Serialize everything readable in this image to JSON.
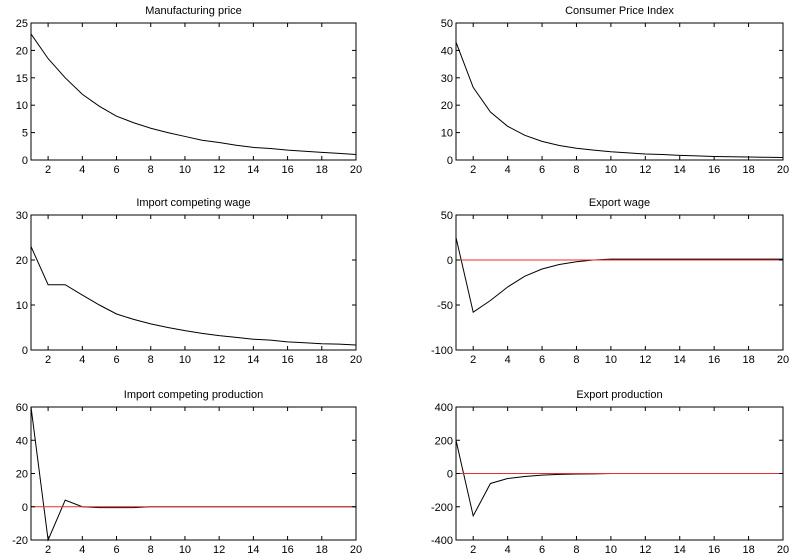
{
  "chart_data": [
    {
      "type": "line",
      "title": "Manufacturing price",
      "x": [
        1,
        2,
        3,
        4,
        5,
        6,
        7,
        8,
        9,
        10,
        11,
        12,
        13,
        14,
        15,
        16,
        17,
        18,
        19,
        20
      ],
      "series": [
        {
          "values": [
            23,
            18.5,
            15,
            12,
            9.8,
            8,
            6.8,
            5.8,
            5,
            4.3,
            3.6,
            3.2,
            2.7,
            2.3,
            2.1,
            1.8,
            1.6,
            1.4,
            1.2,
            1
          ]
        },
        {
          "values": [
            0,
            0,
            0,
            0,
            0,
            0,
            0,
            0,
            0,
            0,
            0,
            0,
            0,
            0,
            0,
            0,
            0,
            0,
            0,
            0
          ]
        }
      ],
      "xlim": [
        1,
        20
      ],
      "ylim": [
        0,
        25
      ],
      "xticks": [
        2,
        4,
        6,
        8,
        10,
        12,
        14,
        16,
        18,
        20
      ],
      "yticks": [
        0,
        5,
        10,
        15,
        20,
        25
      ],
      "xlabel": "",
      "ylabel": "",
      "grid": false
    },
    {
      "type": "line",
      "title": "Consumer Price Index",
      "x": [
        1,
        2,
        3,
        4,
        5,
        6,
        7,
        8,
        9,
        10,
        11,
        12,
        13,
        14,
        15,
        16,
        17,
        18,
        19,
        20
      ],
      "series": [
        {
          "values": [
            43,
            26.5,
            17.5,
            12.3,
            9,
            6.8,
            5.3,
            4.3,
            3.6,
            3,
            2.6,
            2.2,
            2,
            1.7,
            1.5,
            1.3,
            1.2,
            1.1,
            1,
            0.9
          ]
        },
        {
          "values": [
            0,
            0,
            0,
            0,
            0,
            0,
            0,
            0,
            0,
            0,
            0,
            0,
            0,
            0,
            0,
            0,
            0,
            0,
            0,
            0
          ]
        }
      ],
      "xlim": [
        1,
        20
      ],
      "ylim": [
        0,
        50
      ],
      "xticks": [
        2,
        4,
        6,
        8,
        10,
        12,
        14,
        16,
        18,
        20
      ],
      "yticks": [
        0,
        10,
        20,
        30,
        40,
        50
      ],
      "xlabel": "",
      "ylabel": "",
      "grid": false
    },
    {
      "type": "line",
      "title": "Import competing wage",
      "x": [
        1,
        2,
        3,
        4,
        5,
        6,
        7,
        8,
        9,
        10,
        11,
        12,
        13,
        14,
        15,
        16,
        17,
        18,
        19,
        20
      ],
      "series": [
        {
          "values": [
            23,
            14.5,
            14.5,
            12.2,
            10,
            8,
            6.8,
            5.8,
            5,
            4.3,
            3.7,
            3.2,
            2.8,
            2.4,
            2.2,
            1.8,
            1.6,
            1.4,
            1.3,
            1.1
          ]
        },
        {
          "values": [
            0,
            0,
            0,
            0,
            0,
            0,
            0,
            0,
            0,
            0,
            0,
            0,
            0,
            0,
            0,
            0,
            0,
            0,
            0,
            0
          ]
        }
      ],
      "xlim": [
        1,
        20
      ],
      "ylim": [
        0,
        30
      ],
      "xticks": [
        2,
        4,
        6,
        8,
        10,
        12,
        14,
        16,
        18,
        20
      ],
      "yticks": [
        0,
        10,
        20,
        30
      ],
      "xlabel": "",
      "ylabel": "",
      "grid": false
    },
    {
      "type": "line",
      "title": "Export wage",
      "x": [
        1,
        2,
        3,
        4,
        5,
        6,
        7,
        8,
        9,
        10,
        11,
        12,
        13,
        14,
        15,
        16,
        17,
        18,
        19,
        20
      ],
      "series": [
        {
          "values": [
            25,
            -58,
            -45,
            -30,
            -18,
            -10,
            -5,
            -2,
            0,
            1,
            1,
            1,
            1,
            1,
            1,
            1,
            1,
            1,
            1,
            1
          ]
        },
        {
          "values": [
            0,
            0,
            0,
            0,
            0,
            0,
            0,
            0,
            0,
            0,
            0,
            0,
            0,
            0,
            0,
            0,
            0,
            0,
            0,
            0
          ]
        }
      ],
      "xlim": [
        1,
        20
      ],
      "ylim": [
        -100,
        50
      ],
      "xticks": [
        2,
        4,
        6,
        8,
        10,
        12,
        14,
        16,
        18,
        20
      ],
      "yticks": [
        -100,
        -50,
        0,
        50
      ],
      "xlabel": "",
      "ylabel": "",
      "grid": false
    },
    {
      "type": "line",
      "title": "Import competing production",
      "x": [
        1,
        2,
        3,
        4,
        5,
        6,
        7,
        8,
        9,
        10,
        11,
        12,
        13,
        14,
        15,
        16,
        17,
        18,
        19,
        20
      ],
      "series": [
        {
          "values": [
            60,
            -20,
            4,
            0,
            -0.5,
            -0.5,
            -0.5,
            0,
            0,
            0,
            0,
            0,
            0,
            0,
            0,
            0,
            0,
            0,
            0,
            0
          ]
        },
        {
          "values": [
            0,
            0,
            0,
            0,
            0,
            0,
            0,
            0,
            0,
            0,
            0,
            0,
            0,
            0,
            0,
            0,
            0,
            0,
            0,
            0
          ]
        }
      ],
      "xlim": [
        1,
        20
      ],
      "ylim": [
        -20,
        60
      ],
      "xticks": [
        2,
        4,
        6,
        8,
        10,
        12,
        14,
        16,
        18,
        20
      ],
      "yticks": [
        -20,
        0,
        20,
        40,
        60
      ],
      "xlabel": "",
      "ylabel": "",
      "grid": false
    },
    {
      "type": "line",
      "title": "Export production",
      "x": [
        1,
        2,
        3,
        4,
        5,
        6,
        7,
        8,
        9,
        10,
        11,
        12,
        13,
        14,
        15,
        16,
        17,
        18,
        19,
        20
      ],
      "series": [
        {
          "values": [
            200,
            -255,
            -60,
            -30,
            -18,
            -10,
            -5,
            -3,
            -2,
            0,
            0,
            0,
            0,
            0,
            0,
            0,
            0,
            0,
            0,
            0
          ]
        },
        {
          "values": [
            0,
            0,
            0,
            0,
            0,
            0,
            0,
            0,
            0,
            0,
            0,
            0,
            0,
            0,
            0,
            0,
            0,
            0,
            0,
            0
          ]
        }
      ],
      "xlim": [
        1,
        20
      ],
      "ylim": [
        -400,
        400
      ],
      "xticks": [
        2,
        4,
        6,
        8,
        10,
        12,
        14,
        16,
        18,
        20
      ],
      "yticks": [
        -400,
        -200,
        0,
        200,
        400
      ],
      "xlabel": "",
      "ylabel": "",
      "grid": false
    }
  ],
  "colors": {
    "response": "#000000",
    "baseline": "#e03030",
    "axes": "#000000"
  }
}
